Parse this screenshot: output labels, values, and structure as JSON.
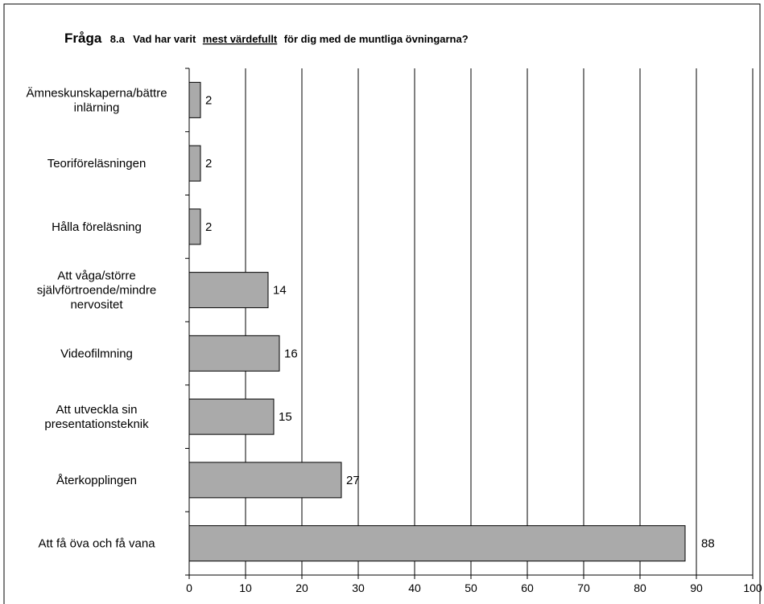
{
  "title": {
    "prefix": "Fråga",
    "number": "8.a",
    "pre": "Vad har varit",
    "emphasis": "mest värdefullt",
    "post": "för dig med de muntliga övningarna?"
  },
  "chart_data": {
    "type": "bar",
    "orientation": "horizontal",
    "categories": [
      "Ämneskunskaperna/bättre inlärning",
      "Teoriföreläsningen",
      "Hålla föreläsning",
      "Att våga/större självförtroende/mindre nervositet",
      "Videofilmning",
      "Att utveckla sin presentationsteknik",
      "Återkopplingen",
      "Att få öva och få vana"
    ],
    "category_lines": [
      [
        "Ämneskunskaperna/bättre",
        "inlärning"
      ],
      [
        "Teoriföreläsningen"
      ],
      [
        "Hålla föreläsning"
      ],
      [
        "Att våga/större",
        "självförtroende/mindre",
        "nervositet"
      ],
      [
        "Videofilmning"
      ],
      [
        "Att utveckla sin",
        "presentationsteknik"
      ],
      [
        "Återkopplingen"
      ],
      [
        "Att få öva och få vana"
      ]
    ],
    "values": [
      2,
      2,
      2,
      14,
      16,
      15,
      27,
      88
    ],
    "xlim": [
      0,
      100
    ],
    "xticks": [
      0,
      10,
      20,
      30,
      40,
      50,
      60,
      70,
      80,
      90,
      100
    ],
    "xlabel": "",
    "ylabel": "",
    "grid": "vertical",
    "legend": "none",
    "colors": {
      "bar": "#aaaaaa",
      "bar_stroke": "#000000",
      "grid": "#000000",
      "background": "#ffffff"
    }
  }
}
